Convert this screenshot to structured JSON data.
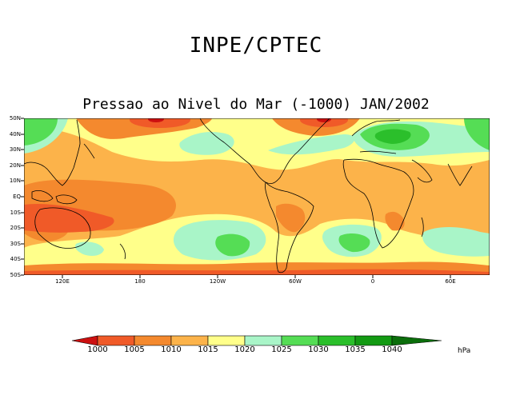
{
  "header": {
    "title": "INPE/CPTEC"
  },
  "map": {
    "title": "Pressao ao Nivel do Mar (-1000) JAN/2002",
    "lat_labels": [
      "50N",
      "40N",
      "30N",
      "20N",
      "10N",
      "EQ",
      "10S",
      "20S",
      "30S",
      "40S",
      "50S"
    ],
    "lon_labels": [
      "120E",
      "180",
      "120W",
      "60W",
      "0",
      "60E"
    ]
  },
  "colorbar": {
    "levels": [
      "1000",
      "1005",
      "1010",
      "1015",
      "1020",
      "1025",
      "1030",
      "1035",
      "1040"
    ],
    "unit": "hPa",
    "colors": {
      "lt1000": "#cc1010",
      "c1000_1005": "#f05a28",
      "c1005_1010": "#f4892e",
      "c1010_1015": "#fcb34a",
      "c1015_1020": "#ffff8a",
      "c1020_1025": "#a9f5c8",
      "c1025_1030": "#55dd55",
      "c1030_1035": "#2bbf2b",
      "c1035_1040": "#139a13",
      "gt1040": "#0b6e0b"
    }
  }
}
